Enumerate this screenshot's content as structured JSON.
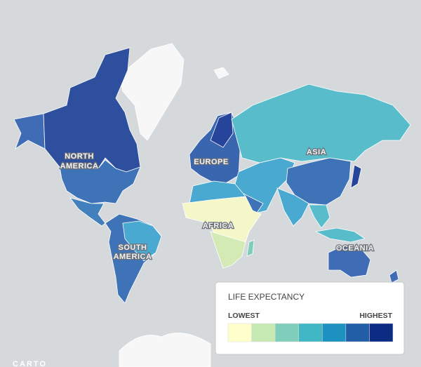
{
  "map": {
    "labels": {
      "north_america": [
        "NORTH",
        "AMERICA"
      ],
      "europe": "EUROPE",
      "asia": "ASIA",
      "africa": "AFRICA",
      "south_america": [
        "SOUTH",
        "AMERICA"
      ],
      "oceania": "OCEANIA"
    },
    "attribution": "CARTO"
  },
  "legend": {
    "title": "LIFE EXPECTANCY",
    "low_label": "LOWEST",
    "high_label": "HIGHEST",
    "colors": [
      "#ffffcc",
      "#c7e9b4",
      "#7fcdbb",
      "#41b6c4",
      "#1d91c0",
      "#225ea8",
      "#0c2c84"
    ]
  }
}
